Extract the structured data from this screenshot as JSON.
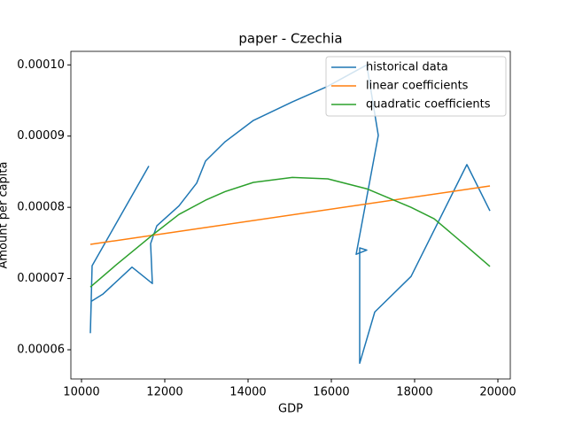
{
  "chart_data": {
    "type": "line",
    "title": "paper - Czechia",
    "x_label": "GDP",
    "y_label": "Amount per capita",
    "xlim": [
      9745,
      20298
    ],
    "ylim": [
      5.59e-05,
      0.0001019
    ],
    "xticks": [
      10000,
      12000,
      14000,
      16000,
      18000,
      20000
    ],
    "yticks": [
      {
        "value": 6e-05,
        "label": "0.00006"
      },
      {
        "value": 7e-05,
        "label": "0.00007"
      },
      {
        "value": 8e-05,
        "label": "0.00008"
      },
      {
        "value": 9e-05,
        "label": "0.00009"
      },
      {
        "value": 0.0001,
        "label": "0.00010"
      }
    ],
    "legend": "upper right",
    "series": [
      {
        "name": "historical data",
        "color": "#1f77b4",
        "x": [
          11617,
          10255,
          10213,
          10234,
          10511,
          11213,
          11702,
          11660,
          11809,
          12340,
          12766,
          12979,
          13447,
          14128,
          15064,
          15915,
          16851,
          17128,
          16596,
          16851,
          16681,
          16681,
          17043,
          17915,
          19255,
          19809
        ],
        "values": [
          8.58e-05,
          7.18e-05,
          6.24e-05,
          6.68e-05,
          6.78e-05,
          7.16e-05,
          6.93e-05,
          7.49e-05,
          7.74e-05,
          8.02e-05,
          8.34e-05,
          8.65e-05,
          8.92e-05,
          9.22e-05,
          9.48e-05,
          9.7e-05,
          0.0001,
          9.01e-05,
          7.34e-05,
          7.4e-05,
          7.43e-05,
          5.81e-05,
          6.53e-05,
          7.03e-05,
          8.6e-05,
          7.95e-05
        ]
      },
      {
        "name": "linear coefficients",
        "color": "#ff7f0e",
        "x": [
          10213,
          19809
        ],
        "values": [
          7.48e-05,
          8.3e-05
        ]
      },
      {
        "name": "quadratic coefficients",
        "color": "#2ca02c",
        "x": [
          10213,
          10809,
          11702,
          12340,
          12979,
          13447,
          14128,
          15064,
          15915,
          16851,
          17915,
          18468,
          19255,
          19809
        ],
        "values": [
          6.88e-05,
          7.18e-05,
          7.61e-05,
          7.9e-05,
          8.1e-05,
          8.22e-05,
          8.35e-05,
          8.42e-05,
          8.4e-05,
          8.26e-05,
          8e-05,
          7.84e-05,
          7.45e-05,
          7.17e-05
        ]
      }
    ]
  }
}
